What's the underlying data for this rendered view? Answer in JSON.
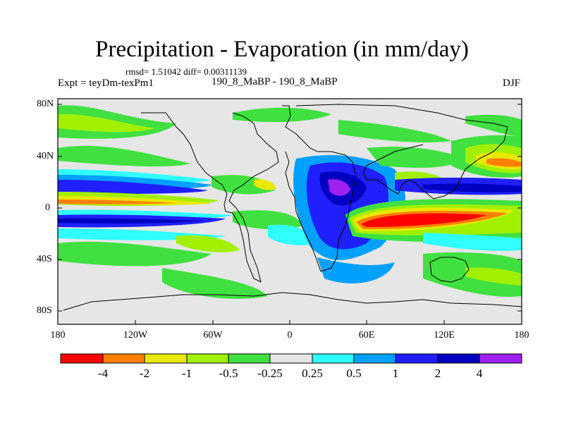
{
  "title": "Precipitation - Evaporation (in mm/day)",
  "stats": "rmsd= 1.51042 diff= 0.00311139",
  "experiment": "Expt = teyDm-texPm1",
  "comparison": "190_8_MaBP - 190_8_MaBP",
  "season": "DJF",
  "map": {
    "lat_labels": [
      "80N",
      "40N",
      "0",
      "40S",
      "80S"
    ],
    "lon_labels": [
      "180",
      "120W",
      "60W",
      "0",
      "60E",
      "120E",
      "180"
    ]
  },
  "colorbar": {
    "tick_labels": [
      "-4",
      "-2",
      "-1",
      "-0.5",
      "-0.25",
      "0.25",
      "0.5",
      "1",
      "2",
      "4"
    ],
    "colors": [
      "#ff0000",
      "#ff8000",
      "#e8e800",
      "#a0f000",
      "#40e040",
      "#e6e6e6",
      "#30ffff",
      "#00a0ff",
      "#2020ff",
      "#0000c0",
      "#a020f0"
    ]
  }
}
